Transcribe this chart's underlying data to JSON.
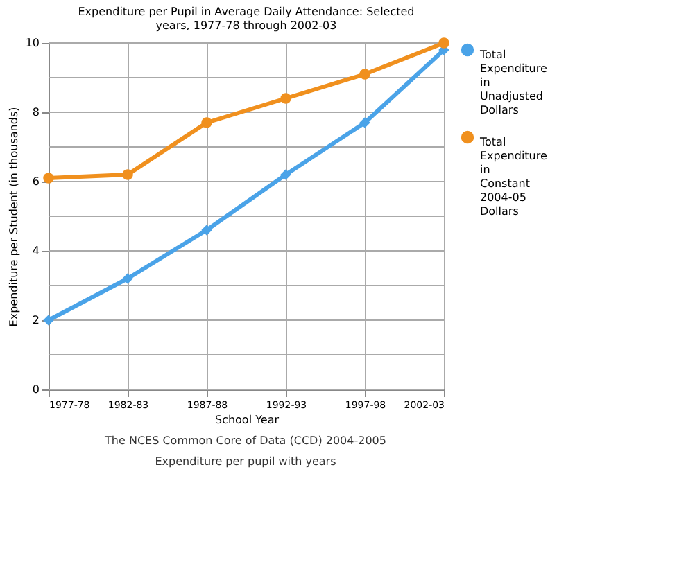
{
  "chart_data": {
    "type": "line",
    "title": [
      "Expenditure per Pupil in Average Daily Attendance: Selected",
      "years, 1977-78 through 2002-03"
    ],
    "xlabel": "School Year",
    "ylabel": "Expenditure per Student (in thousands)",
    "categories": [
      "1977-78",
      "1982-83",
      "1987-88",
      "1992-93",
      "1997-98",
      "2002-03"
    ],
    "series": [
      {
        "name": "Total Expenditure in Unadjusted Dollars",
        "color": "#4aa3e8",
        "marker": "diamond",
        "values": [
          2.0,
          3.2,
          4.6,
          6.2,
          7.7,
          9.8
        ]
      },
      {
        "name": "Total Expenditure in Constant 2004-05 Dollars",
        "color": "#f0901e",
        "marker": "circle",
        "values": [
          6.1,
          6.2,
          7.7,
          8.4,
          9.1,
          10.0
        ]
      }
    ],
    "ylim": [
      0,
      10
    ],
    "yticks": [
      0,
      {
        "value": 1,
        "label": null
      },
      2,
      {
        "value": 3,
        "label": null
      },
      4,
      {
        "value": 5,
        "label": null
      },
      6,
      {
        "value": 7,
        "label": null
      },
      8,
      {
        "value": 9,
        "label": null
      },
      10
    ],
    "grid": true,
    "legend": "right",
    "annotations": [
      "The NCES Common Core of Data (CCD) 2004-2005",
      "Expenditure per pupil with years"
    ]
  }
}
